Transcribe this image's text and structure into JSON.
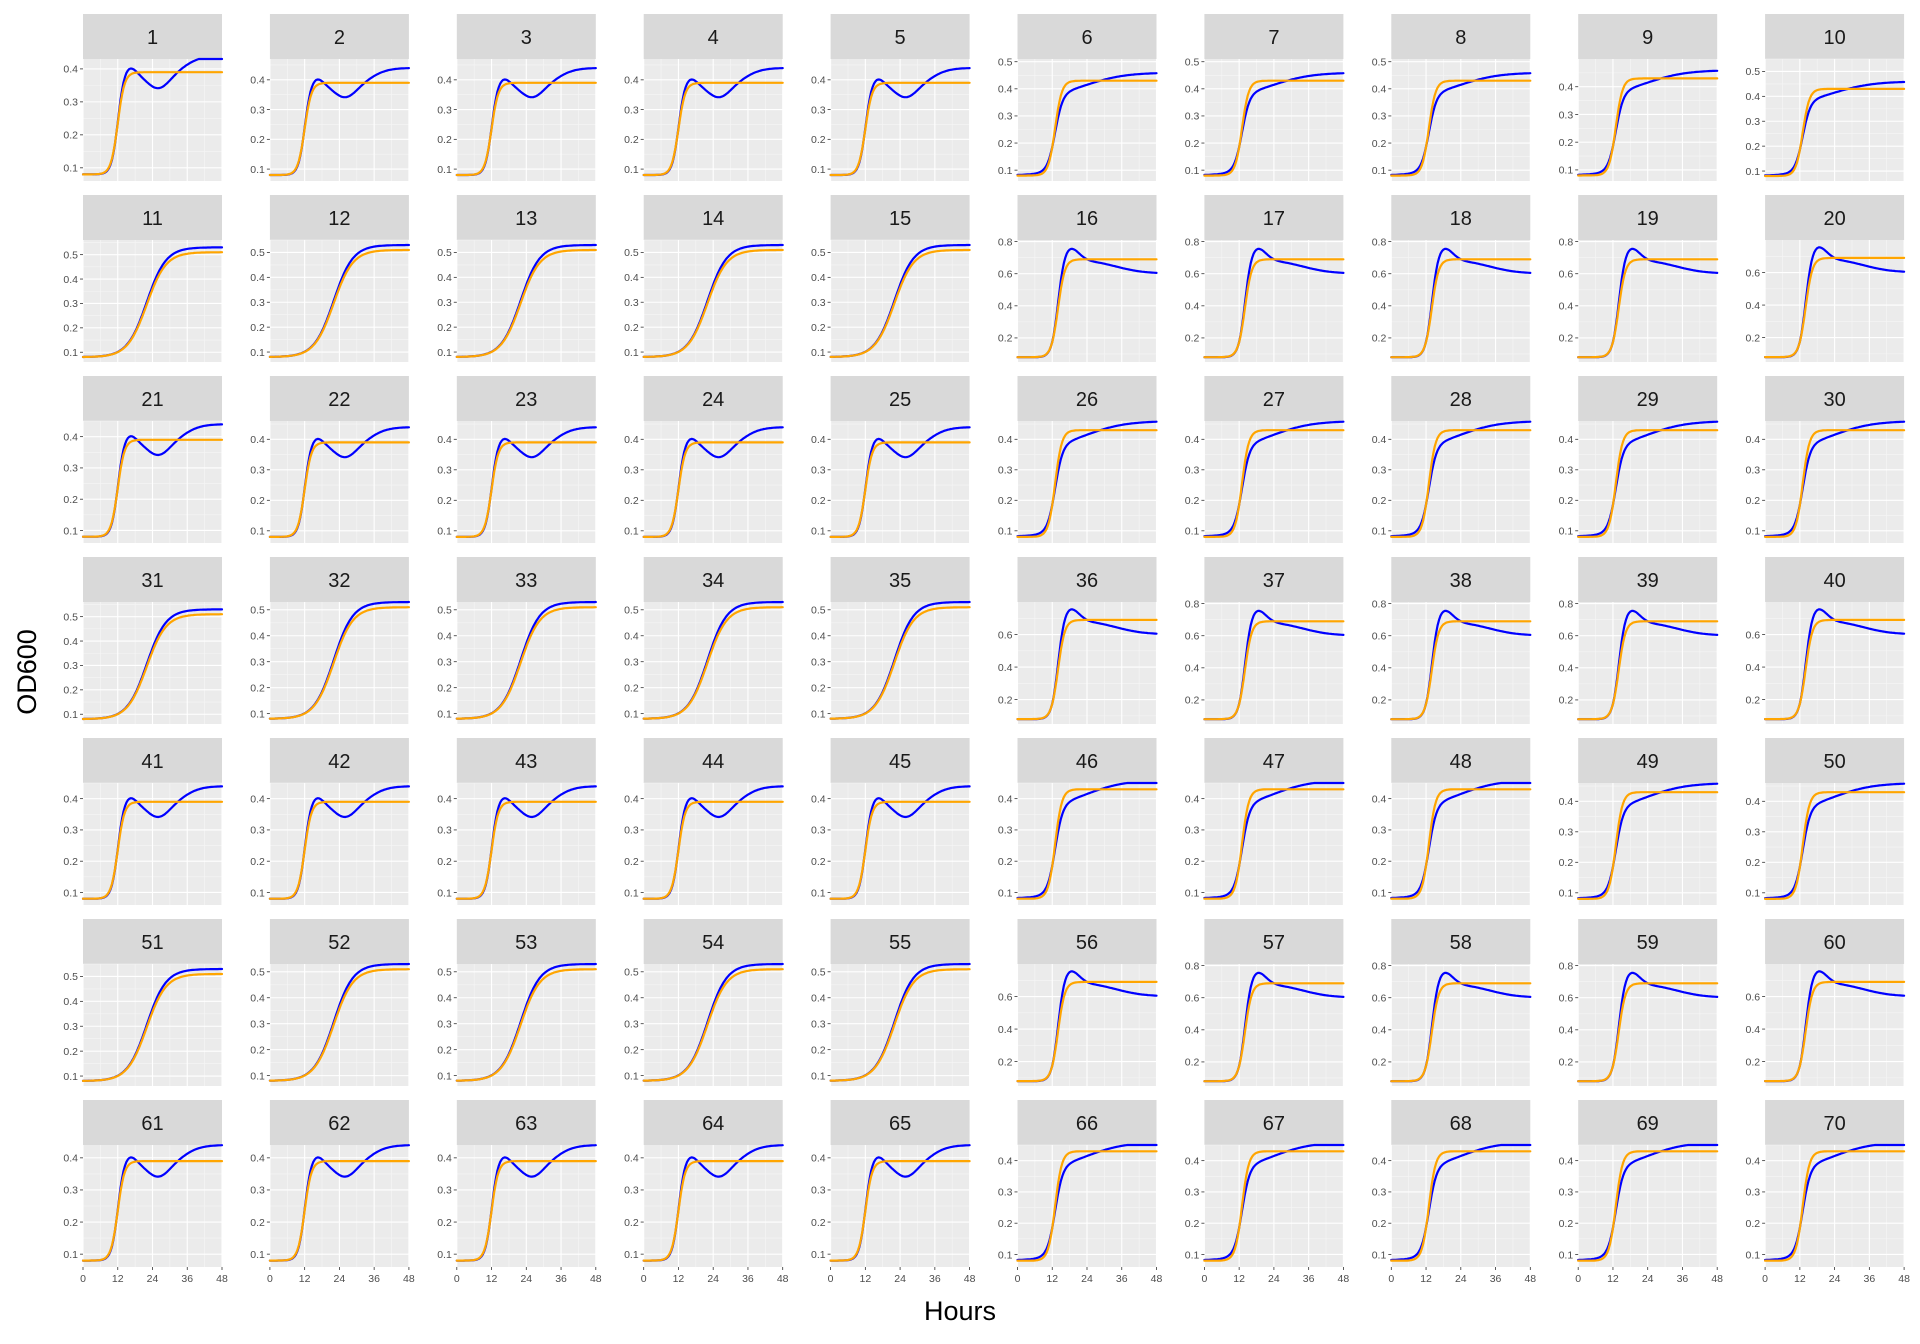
{
  "chart_data": {
    "type": "line",
    "layout": "faceted small multiples, 7 rows x 10 columns",
    "xlabel": "Hours",
    "ylabel": "OD600",
    "x_ticks": [
      0,
      12,
      24,
      36,
      48
    ],
    "xlim": [
      0,
      48
    ],
    "y_scales": "free per panel",
    "grid": true,
    "series_colors": {
      "observed": "#0000ff",
      "fitted": "#ffa500"
    },
    "series_model": {
      "description": "Observed OD600 (blue) vs fitted logistic growth (orange); values approximated by panel group",
      "groups": {
        "A": {
          "note": "panels 1-5, 21-25, 41-45, 61-65: peak ~14-18 h, dip ~26 h, recovery",
          "fit_plateau": 0.39,
          "start": 0.08,
          "rise_midpoint_h": 12,
          "peak": 0.41,
          "dip_h": 26,
          "dip": 0.34,
          "end": 0.44
        },
        "B": {
          "note": "panels 6-10, 26-30, 46-50, 66-70: fast rise then slow climb",
          "fit_plateau": 0.43,
          "start": 0.08,
          "rise_midpoint_h": 13,
          "end": 0.46
        },
        "C": {
          "note": "panels 11-15, 31-35, 51-55: slow sigmoidal rise",
          "fit_plateau": 0.51,
          "start": 0.08,
          "rise_midpoint_h": 22,
          "end": 0.53
        },
        "D": {
          "note": "panels 16-20, 36-40, 56-60: sharp peak ~18 h then decline",
          "fit_plateau": 0.69,
          "start": 0.08,
          "rise_midpoint_h": 14,
          "peak": 0.77,
          "end": 0.6
        }
      }
    },
    "panels": [
      {
        "label": "1",
        "yticks": [
          "0.1",
          "0.2",
          "0.3",
          "0.4"
        ],
        "ylim": [
          0.06,
          0.43
        ],
        "group": "A"
      },
      {
        "label": "2",
        "yticks": [
          "0.1",
          "0.2",
          "0.3",
          "0.4"
        ],
        "ylim": [
          0.06,
          0.47
        ],
        "group": "A"
      },
      {
        "label": "3",
        "yticks": [
          "0.1",
          "0.2",
          "0.3",
          "0.4"
        ],
        "ylim": [
          0.06,
          0.47
        ],
        "group": "A"
      },
      {
        "label": "4",
        "yticks": [
          "0.1",
          "0.2",
          "0.3",
          "0.4"
        ],
        "ylim": [
          0.06,
          0.47
        ],
        "group": "A"
      },
      {
        "label": "5",
        "yticks": [
          "0.1",
          "0.2",
          "0.3",
          "0.4"
        ],
        "ylim": [
          0.06,
          0.47
        ],
        "group": "A"
      },
      {
        "label": "6",
        "yticks": [
          "0.1",
          "0.2",
          "0.3",
          "0.4",
          "0.5"
        ],
        "ylim": [
          0.06,
          0.51
        ],
        "group": "B"
      },
      {
        "label": "7",
        "yticks": [
          "0.1",
          "0.2",
          "0.3",
          "0.4",
          "0.5"
        ],
        "ylim": [
          0.06,
          0.51
        ],
        "group": "B"
      },
      {
        "label": "8",
        "yticks": [
          "0.1",
          "0.2",
          "0.3",
          "0.4",
          "0.5"
        ],
        "ylim": [
          0.06,
          0.51
        ],
        "group": "B"
      },
      {
        "label": "9",
        "yticks": [
          "0.1",
          "0.2",
          "0.3",
          "0.4"
        ],
        "ylim": [
          0.06,
          0.5
        ],
        "group": "B"
      },
      {
        "label": "10",
        "yticks": [
          "0.1",
          "0.2",
          "0.3",
          "0.4",
          "0.5"
        ],
        "ylim": [
          0.06,
          0.55
        ],
        "group": "B"
      },
      {
        "label": "11",
        "yticks": [
          "0.1",
          "0.2",
          "0.3",
          "0.4",
          "0.5"
        ],
        "ylim": [
          0.06,
          0.56
        ],
        "group": "C"
      },
      {
        "label": "12",
        "yticks": [
          "0.1",
          "0.2",
          "0.3",
          "0.4",
          "0.5"
        ],
        "ylim": [
          0.06,
          0.55
        ],
        "group": "C"
      },
      {
        "label": "13",
        "yticks": [
          "0.1",
          "0.2",
          "0.3",
          "0.4",
          "0.5"
        ],
        "ylim": [
          0.06,
          0.55
        ],
        "group": "C"
      },
      {
        "label": "14",
        "yticks": [
          "0.1",
          "0.2",
          "0.3",
          "0.4",
          "0.5"
        ],
        "ylim": [
          0.06,
          0.55
        ],
        "group": "C"
      },
      {
        "label": "15",
        "yticks": [
          "0.1",
          "0.2",
          "0.3",
          "0.4",
          "0.5"
        ],
        "ylim": [
          0.06,
          0.55
        ],
        "group": "C"
      },
      {
        "label": "16",
        "yticks": [
          "0.2",
          "0.4",
          "0.6",
          "0.8"
        ],
        "ylim": [
          0.05,
          0.81
        ],
        "group": "D"
      },
      {
        "label": "17",
        "yticks": [
          "0.2",
          "0.4",
          "0.6",
          "0.8"
        ],
        "ylim": [
          0.05,
          0.81
        ],
        "group": "D"
      },
      {
        "label": "18",
        "yticks": [
          "0.2",
          "0.4",
          "0.6",
          "0.8"
        ],
        "ylim": [
          0.05,
          0.81
        ],
        "group": "D"
      },
      {
        "label": "19",
        "yticks": [
          "0.2",
          "0.4",
          "0.6",
          "0.8"
        ],
        "ylim": [
          0.05,
          0.81
        ],
        "group": "D"
      },
      {
        "label": "20",
        "yticks": [
          "0.2",
          "0.4",
          "0.6"
        ],
        "ylim": [
          0.05,
          0.8
        ],
        "group": "D"
      },
      {
        "label": "21",
        "yticks": [
          "0.1",
          "0.2",
          "0.3",
          "0.4"
        ],
        "ylim": [
          0.06,
          0.45
        ],
        "group": "A"
      },
      {
        "label": "22",
        "yticks": [
          "0.1",
          "0.2",
          "0.3",
          "0.4"
        ],
        "ylim": [
          0.06,
          0.46
        ],
        "group": "A"
      },
      {
        "label": "23",
        "yticks": [
          "0.1",
          "0.2",
          "0.3",
          "0.4"
        ],
        "ylim": [
          0.06,
          0.46
        ],
        "group": "A"
      },
      {
        "label": "24",
        "yticks": [
          "0.1",
          "0.2",
          "0.3",
          "0.4"
        ],
        "ylim": [
          0.06,
          0.46
        ],
        "group": "A"
      },
      {
        "label": "25",
        "yticks": [
          "0.1",
          "0.2",
          "0.3",
          "0.4"
        ],
        "ylim": [
          0.06,
          0.46
        ],
        "group": "A"
      },
      {
        "label": "26",
        "yticks": [
          "0.1",
          "0.2",
          "0.3",
          "0.4"
        ],
        "ylim": [
          0.06,
          0.46
        ],
        "group": "B"
      },
      {
        "label": "27",
        "yticks": [
          "0.1",
          "0.2",
          "0.3",
          "0.4"
        ],
        "ylim": [
          0.06,
          0.46
        ],
        "group": "B"
      },
      {
        "label": "28",
        "yticks": [
          "0.1",
          "0.2",
          "0.3",
          "0.4"
        ],
        "ylim": [
          0.06,
          0.46
        ],
        "group": "B"
      },
      {
        "label": "29",
        "yticks": [
          "0.1",
          "0.2",
          "0.3",
          "0.4"
        ],
        "ylim": [
          0.06,
          0.46
        ],
        "group": "B"
      },
      {
        "label": "30",
        "yticks": [
          "0.1",
          "0.2",
          "0.3",
          "0.4"
        ],
        "ylim": [
          0.06,
          0.46
        ],
        "group": "B"
      },
      {
        "label": "31",
        "yticks": [
          "0.1",
          "0.2",
          "0.3",
          "0.4",
          "0.5"
        ],
        "ylim": [
          0.06,
          0.56
        ],
        "group": "C"
      },
      {
        "label": "32",
        "yticks": [
          "0.1",
          "0.2",
          "0.3",
          "0.4",
          "0.5"
        ],
        "ylim": [
          0.06,
          0.53
        ],
        "group": "C"
      },
      {
        "label": "33",
        "yticks": [
          "0.1",
          "0.2",
          "0.3",
          "0.4",
          "0.5"
        ],
        "ylim": [
          0.06,
          0.53
        ],
        "group": "C"
      },
      {
        "label": "34",
        "yticks": [
          "0.1",
          "0.2",
          "0.3",
          "0.4",
          "0.5"
        ],
        "ylim": [
          0.06,
          0.53
        ],
        "group": "C"
      },
      {
        "label": "35",
        "yticks": [
          "0.1",
          "0.2",
          "0.3",
          "0.4",
          "0.5"
        ],
        "ylim": [
          0.06,
          0.53
        ],
        "group": "C"
      },
      {
        "label": "36",
        "yticks": [
          "0.2",
          "0.4",
          "0.6"
        ],
        "ylim": [
          0.05,
          0.8
        ],
        "group": "D"
      },
      {
        "label": "37",
        "yticks": [
          "0.2",
          "0.4",
          "0.6",
          "0.8"
        ],
        "ylim": [
          0.05,
          0.81
        ],
        "group": "D"
      },
      {
        "label": "38",
        "yticks": [
          "0.2",
          "0.4",
          "0.6",
          "0.8"
        ],
        "ylim": [
          0.05,
          0.81
        ],
        "group": "D"
      },
      {
        "label": "39",
        "yticks": [
          "0.2",
          "0.4",
          "0.6",
          "0.8"
        ],
        "ylim": [
          0.05,
          0.81
        ],
        "group": "D"
      },
      {
        "label": "40",
        "yticks": [
          "0.2",
          "0.4",
          "0.6"
        ],
        "ylim": [
          0.05,
          0.8
        ],
        "group": "D"
      },
      {
        "label": "41",
        "yticks": [
          "0.1",
          "0.2",
          "0.3",
          "0.4"
        ],
        "ylim": [
          0.06,
          0.45
        ],
        "group": "A"
      },
      {
        "label": "42",
        "yticks": [
          "0.1",
          "0.2",
          "0.3",
          "0.4"
        ],
        "ylim": [
          0.06,
          0.45
        ],
        "group": "A"
      },
      {
        "label": "43",
        "yticks": [
          "0.1",
          "0.2",
          "0.3",
          "0.4"
        ],
        "ylim": [
          0.06,
          0.45
        ],
        "group": "A"
      },
      {
        "label": "44",
        "yticks": [
          "0.1",
          "0.2",
          "0.3",
          "0.4"
        ],
        "ylim": [
          0.06,
          0.45
        ],
        "group": "A"
      },
      {
        "label": "45",
        "yticks": [
          "0.1",
          "0.2",
          "0.3",
          "0.4"
        ],
        "ylim": [
          0.06,
          0.45
        ],
        "group": "A"
      },
      {
        "label": "46",
        "yticks": [
          "0.1",
          "0.2",
          "0.3",
          "0.4"
        ],
        "ylim": [
          0.06,
          0.45
        ],
        "group": "B"
      },
      {
        "label": "47",
        "yticks": [
          "0.1",
          "0.2",
          "0.3",
          "0.4"
        ],
        "ylim": [
          0.06,
          0.45
        ],
        "group": "B"
      },
      {
        "label": "48",
        "yticks": [
          "0.1",
          "0.2",
          "0.3",
          "0.4"
        ],
        "ylim": [
          0.06,
          0.45
        ],
        "group": "B"
      },
      {
        "label": "49",
        "yticks": [
          "0.1",
          "0.2",
          "0.3",
          "0.4"
        ],
        "ylim": [
          0.06,
          0.46
        ],
        "group": "B"
      },
      {
        "label": "50",
        "yticks": [
          "0.1",
          "0.2",
          "0.3",
          "0.4"
        ],
        "ylim": [
          0.06,
          0.46
        ],
        "group": "B"
      },
      {
        "label": "51",
        "yticks": [
          "0.1",
          "0.2",
          "0.3",
          "0.4",
          "0.5"
        ],
        "ylim": [
          0.06,
          0.55
        ],
        "group": "C"
      },
      {
        "label": "52",
        "yticks": [
          "0.1",
          "0.2",
          "0.3",
          "0.4",
          "0.5"
        ],
        "ylim": [
          0.06,
          0.53
        ],
        "group": "C"
      },
      {
        "label": "53",
        "yticks": [
          "0.1",
          "0.2",
          "0.3",
          "0.4",
          "0.5"
        ],
        "ylim": [
          0.06,
          0.53
        ],
        "group": "C"
      },
      {
        "label": "54",
        "yticks": [
          "0.1",
          "0.2",
          "0.3",
          "0.4",
          "0.5"
        ],
        "ylim": [
          0.06,
          0.53
        ],
        "group": "C"
      },
      {
        "label": "55",
        "yticks": [
          "0.1",
          "0.2",
          "0.3",
          "0.4",
          "0.5"
        ],
        "ylim": [
          0.06,
          0.53
        ],
        "group": "C"
      },
      {
        "label": "56",
        "yticks": [
          "0.2",
          "0.4",
          "0.6"
        ],
        "ylim": [
          0.05,
          0.8
        ],
        "group": "D"
      },
      {
        "label": "57",
        "yticks": [
          "0.2",
          "0.4",
          "0.6",
          "0.8"
        ],
        "ylim": [
          0.05,
          0.81
        ],
        "group": "D"
      },
      {
        "label": "58",
        "yticks": [
          "0.2",
          "0.4",
          "0.6",
          "0.8"
        ],
        "ylim": [
          0.05,
          0.81
        ],
        "group": "D"
      },
      {
        "label": "59",
        "yticks": [
          "0.2",
          "0.4",
          "0.6",
          "0.8"
        ],
        "ylim": [
          0.05,
          0.81
        ],
        "group": "D"
      },
      {
        "label": "60",
        "yticks": [
          "0.2",
          "0.4",
          "0.6"
        ],
        "ylim": [
          0.05,
          0.8
        ],
        "group": "D"
      },
      {
        "label": "61",
        "yticks": [
          "0.1",
          "0.2",
          "0.3",
          "0.4"
        ],
        "ylim": [
          0.06,
          0.44
        ],
        "group": "A"
      },
      {
        "label": "62",
        "yticks": [
          "0.1",
          "0.2",
          "0.3",
          "0.4"
        ],
        "ylim": [
          0.06,
          0.44
        ],
        "group": "A"
      },
      {
        "label": "63",
        "yticks": [
          "0.1",
          "0.2",
          "0.3",
          "0.4"
        ],
        "ylim": [
          0.06,
          0.44
        ],
        "group": "A"
      },
      {
        "label": "64",
        "yticks": [
          "0.1",
          "0.2",
          "0.3",
          "0.4"
        ],
        "ylim": [
          0.06,
          0.44
        ],
        "group": "A"
      },
      {
        "label": "65",
        "yticks": [
          "0.1",
          "0.2",
          "0.3",
          "0.4"
        ],
        "ylim": [
          0.06,
          0.44
        ],
        "group": "A"
      },
      {
        "label": "66",
        "yticks": [
          "0.1",
          "0.2",
          "0.3",
          "0.4"
        ],
        "ylim": [
          0.06,
          0.45
        ],
        "group": "B"
      },
      {
        "label": "67",
        "yticks": [
          "0.1",
          "0.2",
          "0.3",
          "0.4"
        ],
        "ylim": [
          0.06,
          0.45
        ],
        "group": "B"
      },
      {
        "label": "68",
        "yticks": [
          "0.1",
          "0.2",
          "0.3",
          "0.4"
        ],
        "ylim": [
          0.06,
          0.45
        ],
        "group": "B"
      },
      {
        "label": "69",
        "yticks": [
          "0.1",
          "0.2",
          "0.3",
          "0.4"
        ],
        "ylim": [
          0.06,
          0.45
        ],
        "group": "B"
      },
      {
        "label": "70",
        "yticks": [
          "0.1",
          "0.2",
          "0.3",
          "0.4"
        ],
        "ylim": [
          0.06,
          0.45
        ],
        "group": "B"
      }
    ]
  }
}
